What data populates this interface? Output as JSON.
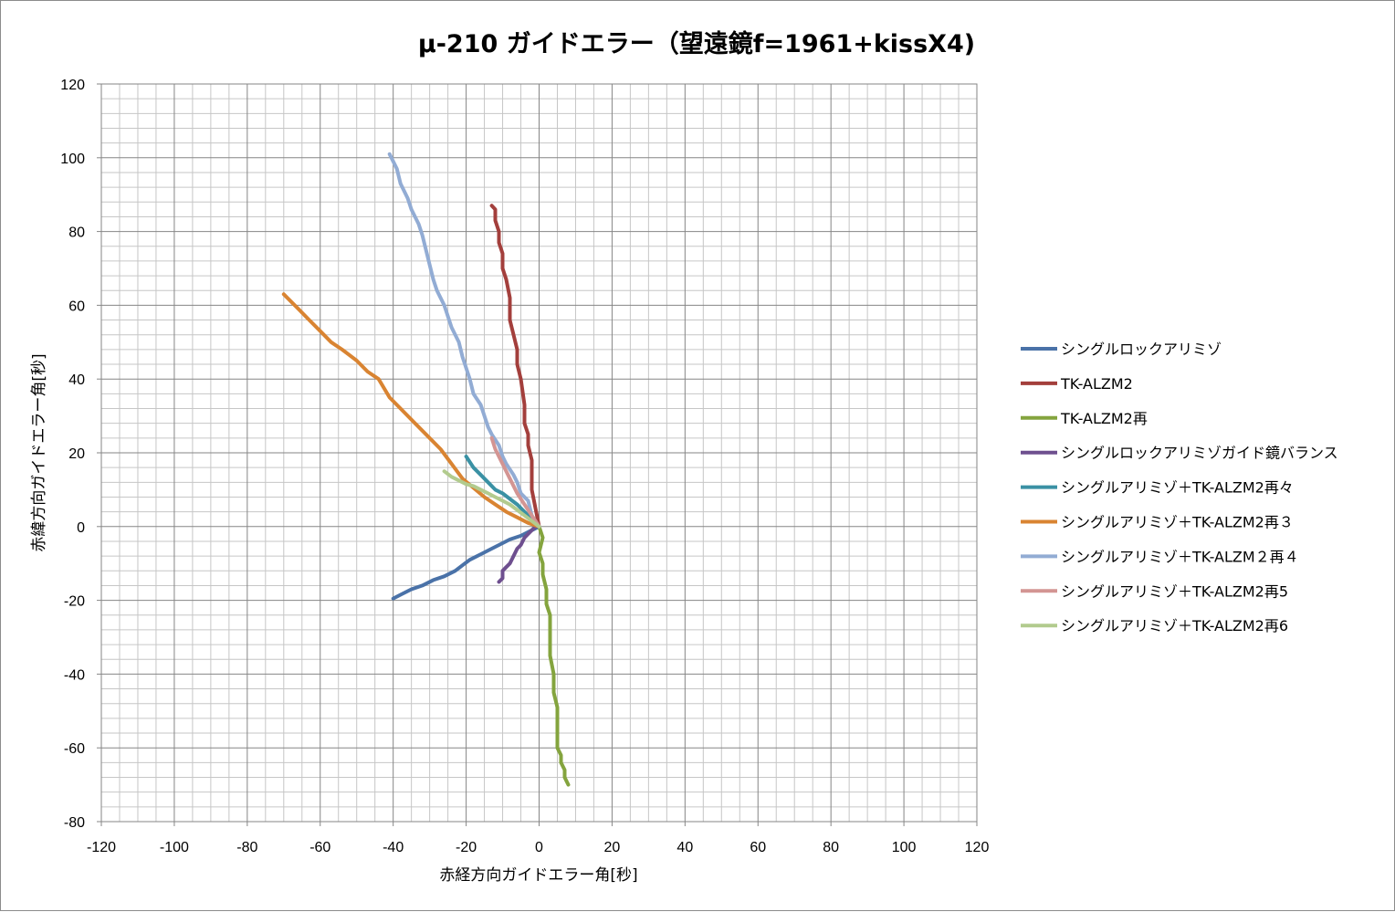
{
  "chart_data": {
    "type": "line",
    "title": "μ-210 ガイドエラー（望遠鏡f=1961+kissX4)",
    "xlabel": "赤経方向ガイドエラー角[秒]",
    "ylabel": "赤緯方向ガイドエラー角[秒]",
    "xlim": [
      -120,
      120
    ],
    "ylim": [
      -80,
      120
    ],
    "x_major_step": 20,
    "y_major_step": 20,
    "x_minor_step": 5,
    "y_minor_step": 4,
    "x_ticks": [
      "-120",
      "-100",
      "-80",
      "-60",
      "-40",
      "-20",
      "0",
      "20",
      "40",
      "60",
      "80",
      "100",
      "120"
    ],
    "y_ticks": [
      "120",
      "100",
      "80",
      "60",
      "40",
      "20",
      "0",
      "-20",
      "-40",
      "-60",
      "-80"
    ],
    "grid": true,
    "legend_position": "right",
    "series": [
      {
        "name": "シングルロックアリミゾ",
        "color": "#4a72a8",
        "x": [
          0,
          -2,
          -5,
          -8,
          -11,
          -13,
          -16,
          -19,
          -21,
          -23,
          -26,
          -29,
          -32,
          -35,
          -38,
          -40
        ],
        "y": [
          0,
          -1,
          -2.5,
          -3.5,
          -5,
          -6,
          -7.5,
          -9,
          -10.5,
          -12,
          -13.5,
          -14.5,
          -16,
          -17,
          -18.5,
          -19.5
        ]
      },
      {
        "name": "TK-ALZM2",
        "color": "#a33f3c",
        "x": [
          0,
          -1,
          -2,
          -2,
          -3,
          -3,
          -4,
          -4,
          -5,
          -6,
          -6,
          -7,
          -8,
          -8,
          -9,
          -10,
          -10,
          -11,
          -11,
          -12,
          -12,
          -13
        ],
        "y": [
          0,
          5,
          10,
          18,
          22,
          25,
          28,
          33,
          40,
          44,
          48,
          52,
          56,
          62,
          67,
          70,
          74,
          77,
          80,
          83,
          86,
          87
        ]
      },
      {
        "name": "TK-ALZM2再",
        "color": "#84a43e",
        "x": [
          0,
          1,
          0,
          1,
          1,
          2,
          2,
          3,
          3,
          3,
          3,
          4,
          4,
          5,
          5,
          5,
          5,
          6,
          6,
          7,
          7,
          8
        ],
        "y": [
          0,
          -3,
          -7,
          -10,
          -13,
          -17,
          -21,
          -24,
          -28,
          -31,
          -35,
          -40,
          -45,
          -49,
          -53,
          -57,
          -60,
          -62,
          -64,
          -66,
          -68,
          -70
        ]
      },
      {
        "name": "シングルロックアリミゾガイド鏡バランス",
        "color": "#6e4f8f",
        "x": [
          -1,
          -2,
          -3,
          -4,
          -5,
          -6,
          -7,
          -8,
          -9,
          -10,
          -10,
          -11
        ],
        "y": [
          0,
          -1,
          -2,
          -3,
          -5,
          -6,
          -8,
          -10,
          -11,
          -12,
          -14,
          -15
        ]
      },
      {
        "name": "シングルアリミゾ＋TK-ALZM2再々",
        "color": "#3a91a4",
        "x": [
          0,
          -2,
          -4,
          -6,
          -8,
          -10,
          -12,
          -14,
          -16,
          -18,
          -20
        ],
        "y": [
          0,
          2,
          4,
          6,
          7.5,
          9,
          10,
          12,
          14,
          16,
          19
        ]
      },
      {
        "name": "シングルアリミゾ＋TK-ALZM2再３",
        "color": "#d98432",
        "x": [
          0,
          -3,
          -6,
          -9,
          -12,
          -15,
          -18,
          -21,
          -24,
          -27,
          -31,
          -34,
          -38,
          -41,
          -44,
          -47,
          -50,
          -54,
          -57,
          -60,
          -63,
          -66,
          -70
        ],
        "y": [
          0,
          1,
          2.5,
          4,
          6,
          8,
          10.5,
          13,
          17,
          21,
          25,
          28,
          32,
          35,
          40,
          42,
          45,
          48,
          50,
          53,
          56,
          59,
          63
        ]
      },
      {
        "name": "シングルアリミゾ＋TK-ALZM２再４",
        "color": "#92acd4",
        "x": [
          0,
          -2,
          -3,
          -5,
          -6,
          -7,
          -9,
          -10,
          -11,
          -13,
          -14,
          -15,
          -16,
          -18,
          -19,
          -20,
          -21,
          -22,
          -24,
          -25,
          -26,
          -28,
          -29,
          -30,
          -31,
          -32,
          -33,
          -35,
          -36,
          -38,
          -39,
          -41
        ],
        "y": [
          0,
          3,
          7,
          9,
          12,
          14,
          17,
          19,
          22,
          25,
          27,
          30,
          33,
          36,
          40,
          43,
          46,
          50,
          54,
          57,
          60,
          64,
          67,
          71,
          75,
          79,
          82,
          86,
          89,
          93,
          97,
          101
        ]
      },
      {
        "name": "シングルアリミゾ＋TK-ALZM2再5",
        "color": "#d39593",
        "x": [
          0,
          -2,
          -4,
          -6,
          -8,
          -10,
          -12,
          -13
        ],
        "y": [
          0,
          3,
          6,
          9,
          13,
          17,
          21,
          24
        ]
      },
      {
        "name": "シングルアリミゾ＋TK-ALZM2再6",
        "color": "#b2cb8e",
        "x": [
          0,
          -2,
          -4,
          -6,
          -8,
          -10,
          -12,
          -14,
          -16,
          -18,
          -20,
          -22,
          -24,
          -26
        ],
        "y": [
          0,
          1.5,
          3,
          4.5,
          6,
          7,
          8,
          9,
          10,
          11,
          11.5,
          12.5,
          13.5,
          15
        ]
      }
    ]
  }
}
